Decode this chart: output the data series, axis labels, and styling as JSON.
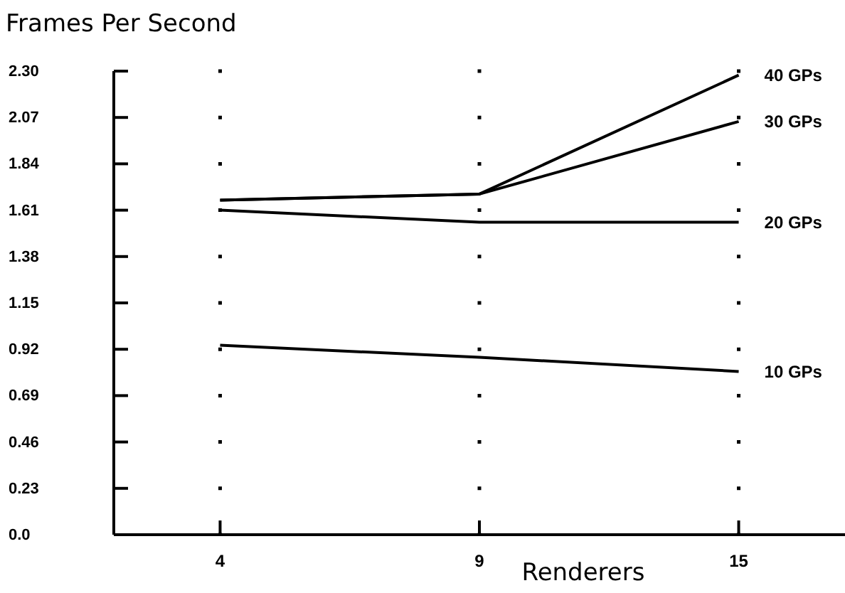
{
  "chart_data": {
    "type": "line",
    "title": "Frames Per Second",
    "xlabel": "Renderers",
    "categories": [
      "4",
      "9",
      "15"
    ],
    "series": [
      {
        "name": "40 GPs",
        "color": "#000000",
        "values": [
          1.66,
          1.69,
          2.28
        ]
      },
      {
        "name": "30 GPs",
        "color": "#000000",
        "values": [
          1.66,
          1.69,
          2.05
        ]
      },
      {
        "name": "20 GPs",
        "color": "#000000",
        "values": [
          1.61,
          1.55,
          1.55
        ]
      },
      {
        "name": "10 GPs",
        "color": "#000000",
        "values": [
          0.94,
          0.88,
          0.81
        ]
      }
    ],
    "ylim": [
      0,
      2.3
    ],
    "yticks": [
      {
        "value": 0,
        "label": "0.0"
      },
      0.23,
      0.46,
      0.69,
      0.92,
      1.15,
      1.38,
      1.61,
      1.84,
      2.07,
      {
        "value": 2.3,
        "label": "2.30"
      }
    ],
    "grid": "x",
    "marker": "none",
    "line_style": "solid"
  }
}
